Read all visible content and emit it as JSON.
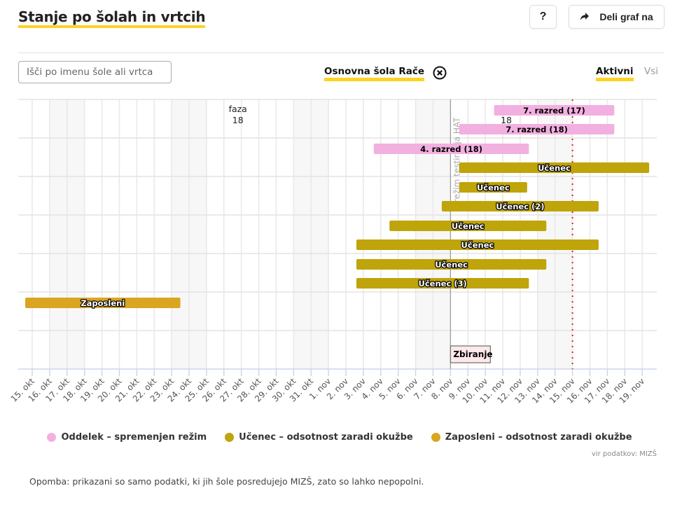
{
  "header": {
    "title": "Stanje po šolah in vrtcih",
    "help_label": "?",
    "share_label": "Deli graf na"
  },
  "filters": {
    "search_placeholder": "Išči po imenu šole ali vrtca",
    "selected_school": "Osnovna šola Rače",
    "active_label": "Aktivni",
    "all_label": "Vsi"
  },
  "colors": {
    "accent": "#ffd220",
    "oddelek": "#f2b0e0",
    "ucenec": "#bfa40a",
    "zaposleni": "#dba521",
    "today_line": "#e8201c"
  },
  "chart_data": {
    "type": "gantt",
    "title": "Stanje po šolah in vrtcih",
    "x_axis": {
      "start_label": "15. okt",
      "tick_labels": [
        "15. okt",
        "16. okt",
        "17. okt",
        "18. okt",
        "19. okt",
        "20. okt",
        "21. okt",
        "22. okt",
        "23. okt",
        "24. okt",
        "25. okt",
        "26. okt",
        "27. okt",
        "28. okt",
        "29. okt",
        "30. okt",
        "31. okt",
        "1. nov",
        "2. nov",
        "3. nov",
        "4. nov",
        "5. nov",
        "6. nov",
        "7. nov",
        "8. nov",
        "9. nov",
        "10. nov",
        "11. nov",
        "12. nov",
        "13. nov",
        "14. nov",
        "15. nov",
        "16. nov",
        "17. nov",
        "18. nov",
        "19. nov"
      ],
      "range_days": [
        -0.4,
        35.8
      ]
    },
    "weekend_days": [
      1,
      2,
      8,
      9,
      15,
      16,
      22,
      23,
      29,
      30
    ],
    "rows": 7,
    "grid": true,
    "bars": [
      {
        "label": "7. razred (17)",
        "category": "oddelek",
        "row": 0,
        "slot": 0,
        "start": 26.5,
        "end": 33.4
      },
      {
        "label": "7. razred (18)",
        "category": "oddelek",
        "row": 0,
        "slot": 1,
        "start": 24.5,
        "end": 33.4
      },
      {
        "label": "4. razred (18)",
        "category": "oddelek",
        "row": 1,
        "slot": 0,
        "start": 19.6,
        "end": 28.5
      },
      {
        "label": "Učenec",
        "category": "ucenec",
        "row": 1,
        "slot": 1,
        "start": 24.5,
        "end": 35.4
      },
      {
        "label": "Učenec",
        "category": "ucenec",
        "row": 2,
        "slot": 0,
        "start": 24.5,
        "end": 28.4
      },
      {
        "label": "Učenec (2)",
        "category": "ucenec",
        "row": 2,
        "slot": 1,
        "start": 23.5,
        "end": 32.5
      },
      {
        "label": "Učenec",
        "category": "ucenec",
        "row": 3,
        "slot": 0,
        "start": 20.5,
        "end": 29.5
      },
      {
        "label": "Učenec",
        "category": "ucenec",
        "row": 3,
        "slot": 1,
        "start": 18.6,
        "end": 32.5
      },
      {
        "label": "Učenec",
        "category": "ucenec",
        "row": 4,
        "slot": 0,
        "start": 18.6,
        "end": 29.5
      },
      {
        "label": "Učenec (3)",
        "category": "ucenec",
        "row": 4,
        "slot": 1,
        "start": 18.6,
        "end": 28.5
      },
      {
        "label": "Zaposleni",
        "category": "zaposleni",
        "row": 5,
        "slot": 0,
        "start": -0.4,
        "end": 8.5
      }
    ],
    "annotations": [
      {
        "type": "text",
        "text": "faza",
        "day": 11.6,
        "row": 0,
        "line": 0
      },
      {
        "type": "text",
        "text": "18",
        "day": 11.6,
        "row": 0,
        "line": 1
      },
      {
        "type": "text",
        "text": "18",
        "day": 27.0,
        "row": 0,
        "line": 1
      },
      {
        "type": "vline",
        "day": 24,
        "label": "v režim testiranja HAT",
        "style": "solid"
      },
      {
        "type": "flag",
        "day": 24,
        "label": "Zbiranje"
      },
      {
        "type": "vline",
        "day": 31,
        "label": "",
        "style": "dotted-red"
      }
    ],
    "legend": {
      "position": "bottom-center",
      "items": [
        {
          "label": "Oddelek – spremenjen režim",
          "category": "oddelek"
        },
        {
          "label": "Učenec – odsotnost zaradi okužbe",
          "category": "ucenec"
        },
        {
          "label": "Zaposleni – odsotnost zaradi okužbe",
          "category": "zaposleni"
        }
      ]
    }
  },
  "footer": {
    "source": "vir podatkov: MIZŠ",
    "note": "Opomba: prikazani so samo podatki, ki jih šole posredujejo MIZŠ, zato so lahko nepopolni."
  }
}
